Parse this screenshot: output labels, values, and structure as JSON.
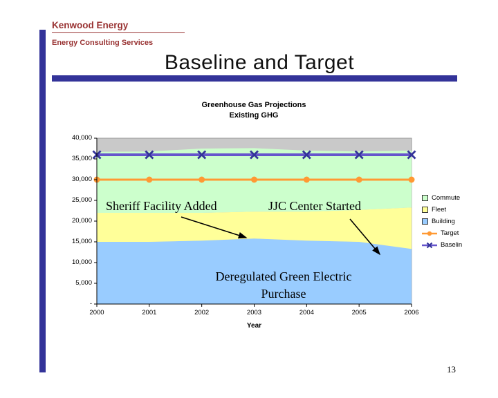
{
  "header": {
    "company": "Kenwood Energy",
    "subtitle": "Energy Consulting Services"
  },
  "title": "Baseline and Target",
  "page_number": "13",
  "colors": {
    "accent_navy": "#333399",
    "header_red": "#993333"
  },
  "chart_data": {
    "type": "area",
    "stacked": true,
    "title_lines": [
      "Greenhouse Gas Projections",
      "Existing GHG"
    ],
    "x": [
      "2000",
      "2001",
      "2002",
      "2003",
      "2004",
      "2005",
      "2006"
    ],
    "xlabel": "Year",
    "ylim": [
      0,
      40000
    ],
    "plot_bg": "#c9c9c9",
    "yticks": [
      {
        "value": 0,
        "label": "-"
      },
      {
        "value": 5000,
        "label": "5,000"
      },
      {
        "value": 10000,
        "label": "10,000"
      },
      {
        "value": 15000,
        "label": "15,000"
      },
      {
        "value": 20000,
        "label": "20,000"
      },
      {
        "value": 25000,
        "label": "25,000"
      },
      {
        "value": 30000,
        "label": "30,000"
      },
      {
        "value": 35000,
        "label": "35,000"
      },
      {
        "value": 40000,
        "label": "40,000"
      }
    ],
    "series": [
      {
        "name": "Building",
        "type": "area",
        "color": "#99ccff",
        "values": [
          15000,
          15000,
          15300,
          15800,
          15300,
          15000,
          13300
        ]
      },
      {
        "name": "Fleet",
        "type": "area",
        "color": "#ffff99",
        "values": [
          7000,
          7000,
          6700,
          6500,
          7000,
          7700,
          10000
        ]
      },
      {
        "name": "Commute",
        "type": "area",
        "color": "#ccffcc",
        "values": [
          14700,
          14800,
          15500,
          15300,
          14700,
          14100,
          13700
        ]
      },
      {
        "name": "Target",
        "type": "line",
        "color": "#ff9933",
        "marker": "circle",
        "marker_color": "#ff9933",
        "width": 3,
        "values": [
          30000,
          30000,
          30000,
          30000,
          30000,
          30000,
          30000
        ]
      },
      {
        "name": "Baseline",
        "type": "line",
        "color": "#6655cc",
        "marker": "x",
        "marker_color": "#333399",
        "width": 4,
        "values": [
          36000,
          36000,
          36000,
          36000,
          36000,
          36000,
          36000
        ]
      }
    ],
    "legend": [
      {
        "label": "Commute",
        "swatch": "square",
        "color": "#ccffcc"
      },
      {
        "label": "Fleet",
        "swatch": "square",
        "color": "#ffff99"
      },
      {
        "label": "Building",
        "swatch": "square",
        "color": "#99ccff"
      },
      {
        "label": "Target",
        "swatch": "line-circle",
        "color": "#ff9933",
        "marker_color": "#ff9933"
      },
      {
        "label": "Baselin",
        "swatch": "line-x",
        "color": "#6655cc",
        "marker_color": "#333399"
      }
    ]
  },
  "annotations": [
    {
      "text": "Sheriff Facility Added"
    },
    {
      "text": "JJC Center Started"
    },
    {
      "text": "Deregulated Green Electric\nPurchase"
    }
  ]
}
